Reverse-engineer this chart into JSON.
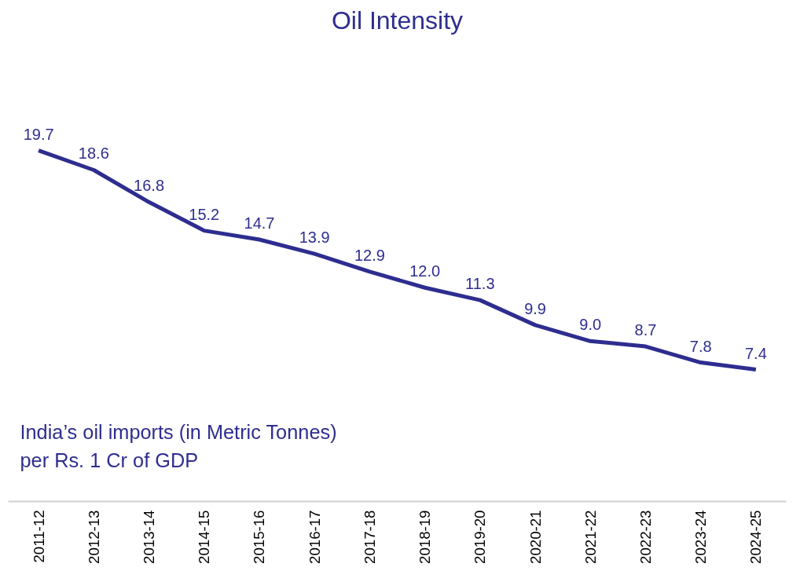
{
  "chart_data": {
    "type": "line",
    "title": "Oil Intensity",
    "categories": [
      "2011-12",
      "2012-13",
      "2013-14",
      "2014-15",
      "2015-16",
      "2016-17",
      "2017-18",
      "2018-19",
      "2019-20",
      "2020-21",
      "2021-22",
      "2022-23",
      "2023-24",
      "2024-25"
    ],
    "series": [
      {
        "color": "#2e2d8f",
        "values": [
          19.7,
          18.6,
          16.8,
          15.2,
          14.7,
          13.9,
          12.9,
          12.0,
          11.3,
          9.9,
          9.0,
          8.7,
          7.8,
          7.4
        ],
        "value_labels": [
          "19.7",
          "18.6",
          "16.8",
          "15.2",
          "14.7",
          "13.9",
          "12.9",
          "12.0",
          "11.3",
          "9.9",
          "9.0",
          "8.7",
          "7.8",
          "7.4"
        ]
      }
    ],
    "annotations": [
      "India’s oil imports (in Metric Tonnes) per Rs. 1 Cr of GDP"
    ],
    "grid": false,
    "marker": "none",
    "line_style": "solid"
  }
}
